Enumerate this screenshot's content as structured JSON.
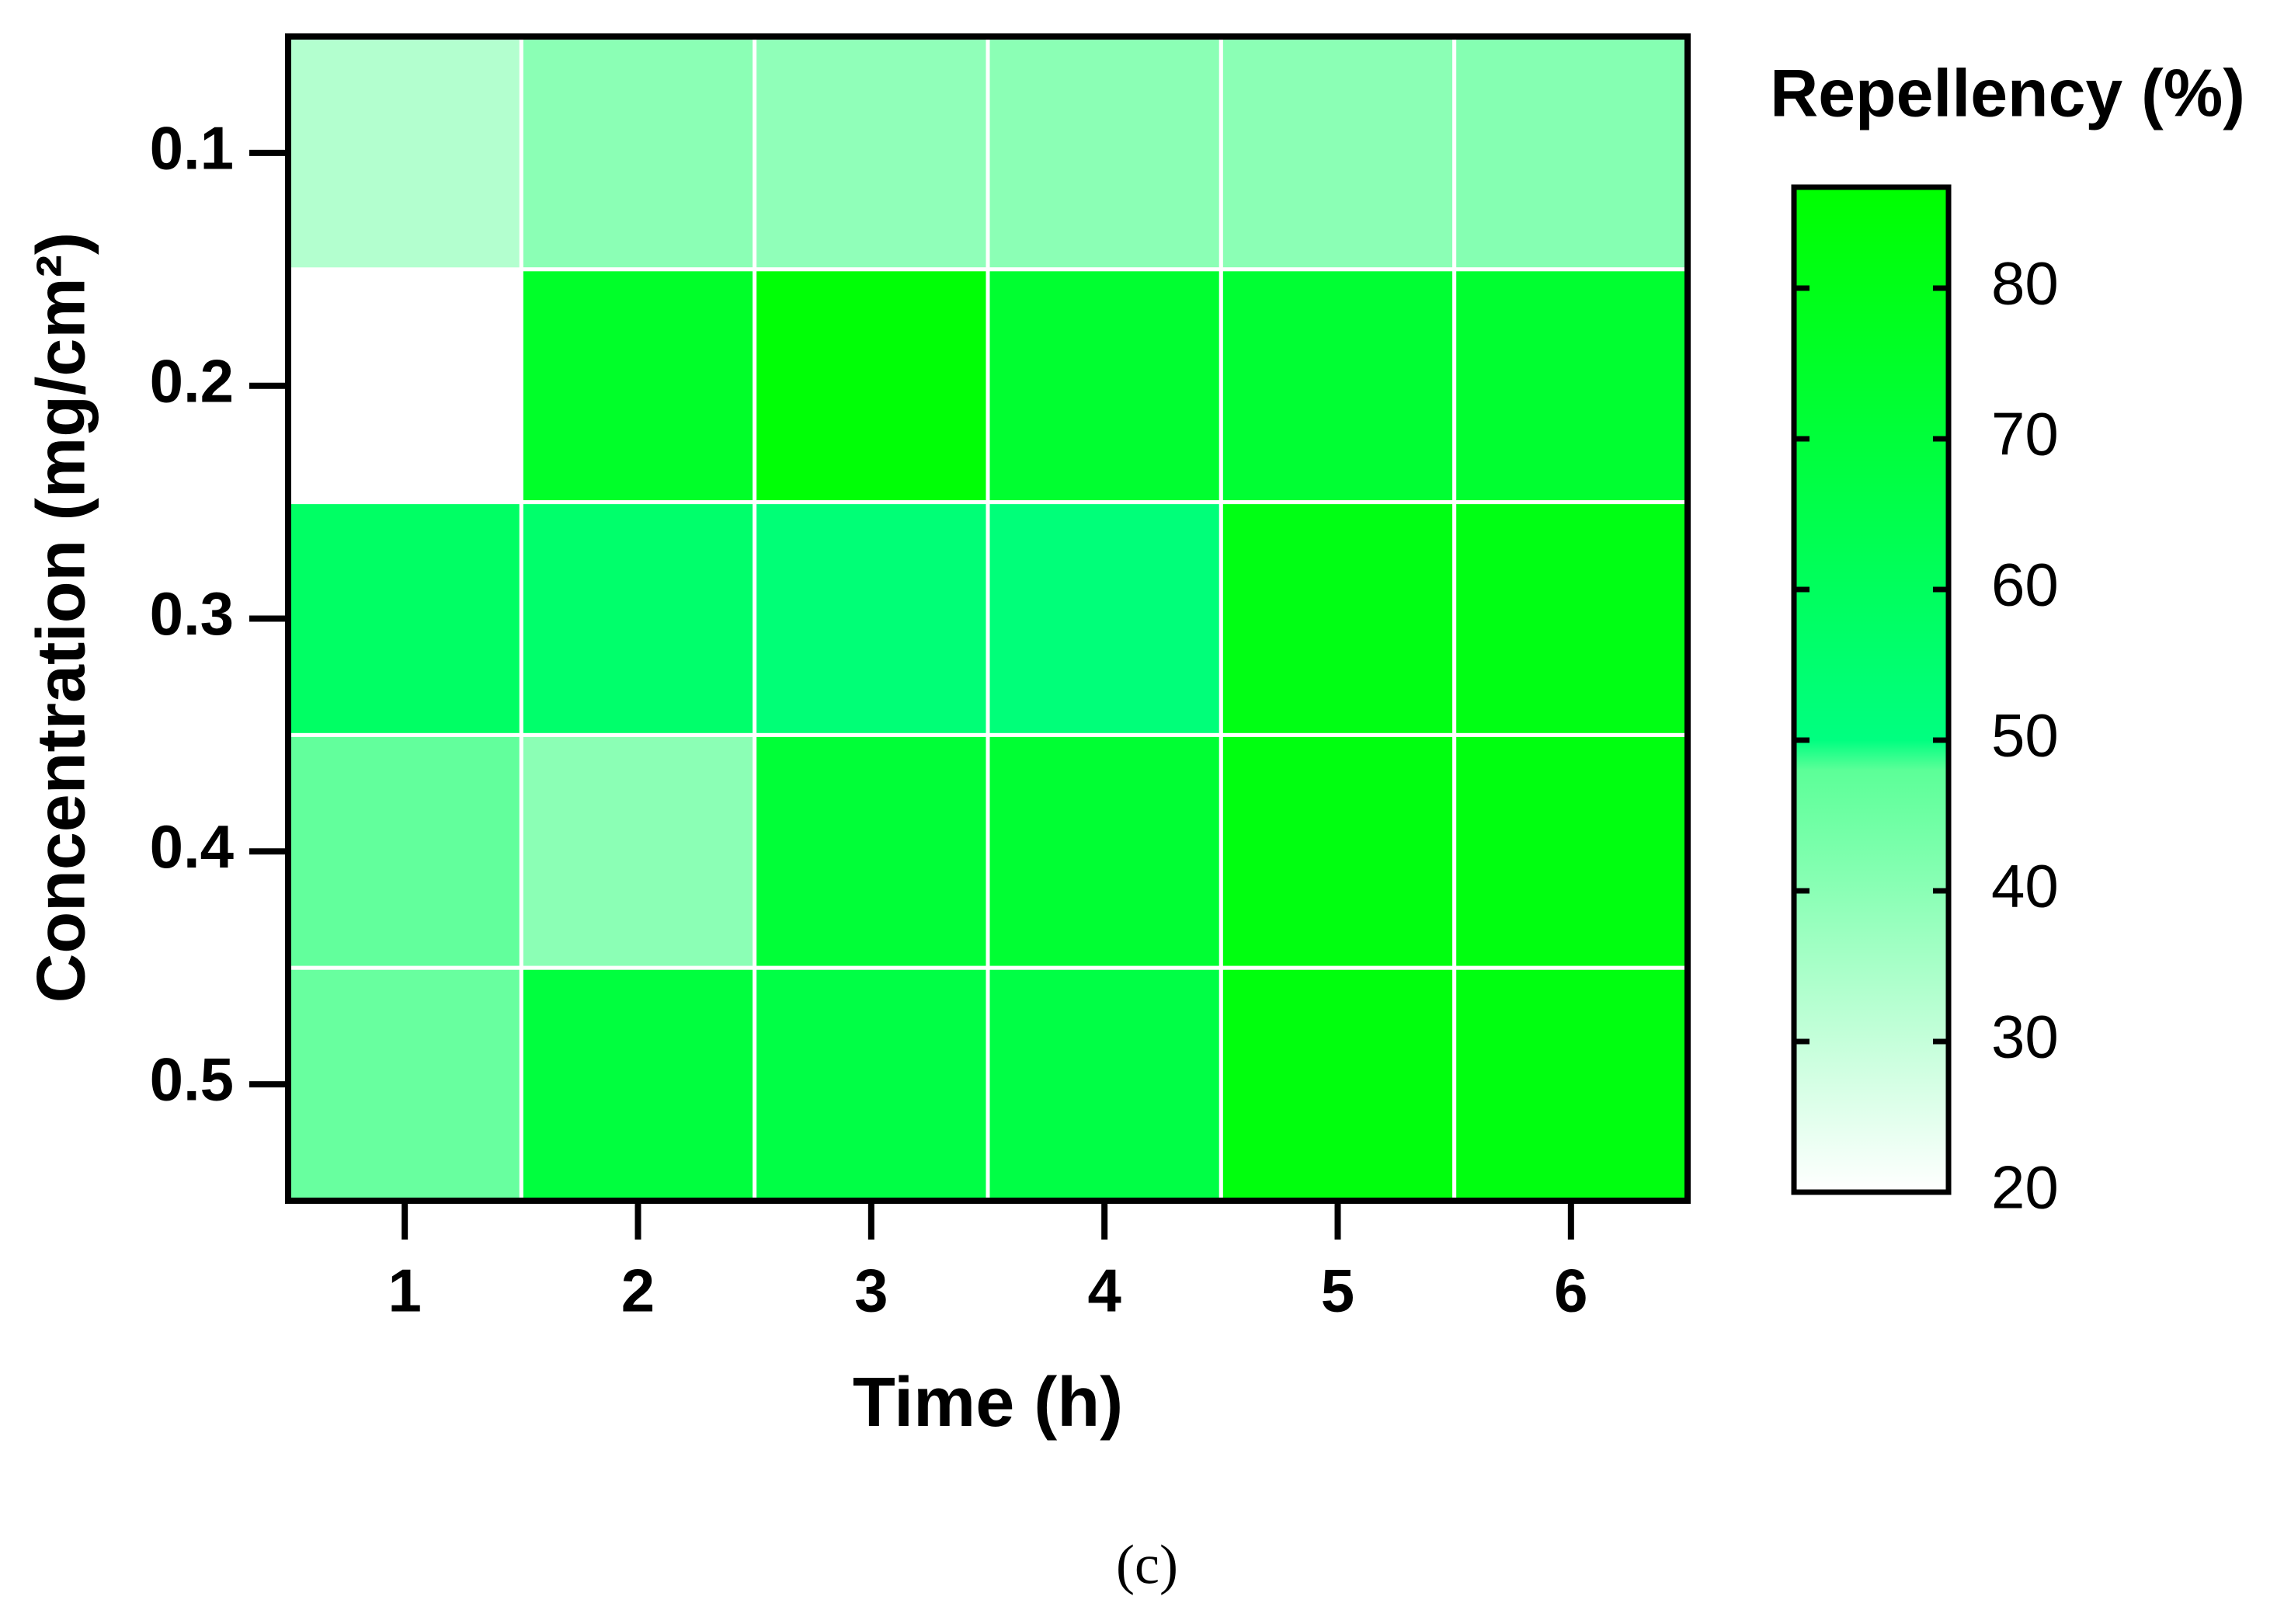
{
  "chart_data": {
    "type": "heatmap",
    "x_label": "Time (h)",
    "y_label": "Concentration (mg/cm²)",
    "x": [
      "1",
      "2",
      "3",
      "4",
      "5",
      "6"
    ],
    "y": [
      "0.1",
      "0.2",
      "0.3",
      "0.4",
      "0.5"
    ],
    "z": [
      [
        33,
        40,
        39,
        40,
        40,
        41
      ],
      [
        null,
        75,
        85,
        73,
        72,
        73
      ],
      [
        58,
        56,
        53,
        52,
        81,
        81
      ],
      [
        47,
        40,
        71,
        72,
        82,
        82
      ],
      [
        46,
        69,
        67,
        67,
        83,
        82
      ]
    ],
    "colorbar": {
      "title": "Repellency (%)",
      "lim": [
        20,
        86.7
      ],
      "ticks": [
        20,
        30,
        40,
        50,
        60,
        70,
        80
      ]
    },
    "colorscale": [
      [
        20,
        "#ffffff"
      ],
      [
        48,
        "#5cff98"
      ],
      [
        50,
        "#00ff80"
      ],
      [
        86.7,
        "#00ff00"
      ]
    ],
    "caption": "(c)"
  }
}
